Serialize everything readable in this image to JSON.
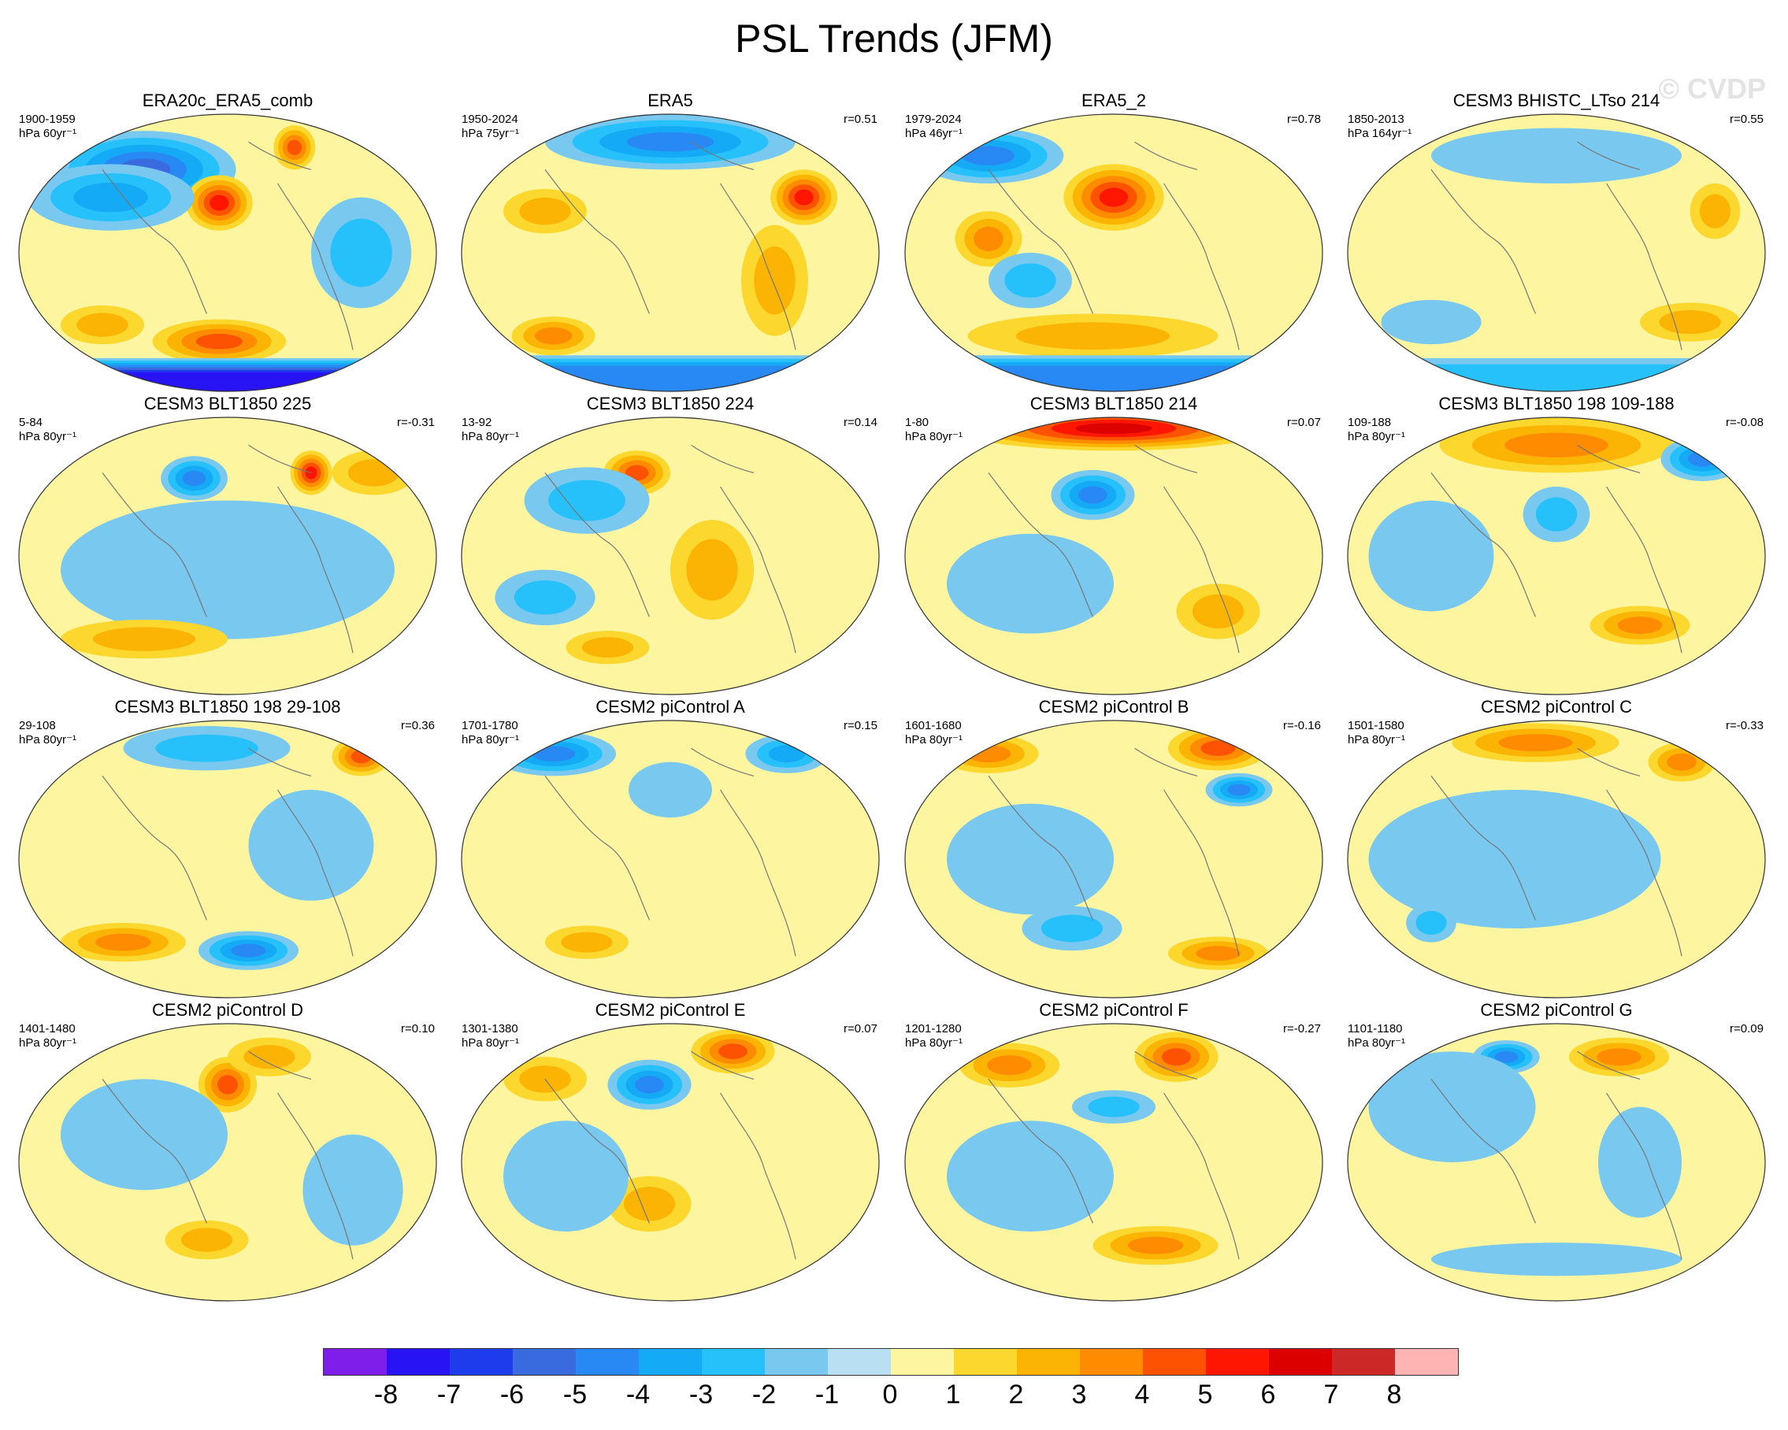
{
  "title": "PSL Trends (JFM)",
  "watermark": "© CVDP",
  "colors": {
    "scale": [
      "#7f1eeb",
      "#2813f5",
      "#1e3ceb",
      "#3a6bde",
      "#2889f5",
      "#15aaf5",
      "#26c1fa",
      "#78c8f0",
      "#b8e0f2",
      "#fdf5a0",
      "#fcd82e",
      "#fcb404",
      "#ff8b00",
      "#fe5203",
      "#fe1600",
      "#dc0000",
      "#cd2828",
      "#ffb4b4"
    ],
    "map_background": "#fdf5a0",
    "pole_blue": "#78c8f0"
  },
  "colorbar": {
    "labels": [
      "-8",
      "-7",
      "-6",
      "-5",
      "-4",
      "-3",
      "-2",
      "-1",
      "0",
      "1",
      "2",
      "3",
      "4",
      "5",
      "6",
      "7",
      "8"
    ]
  },
  "panels": [
    {
      "title": "ERA20c_ERA5_comb",
      "years": "1900-1959",
      "units": "hPa 60yr⁻¹",
      "corr": "",
      "blobs": [
        [
          -5,
          0.3,
          0.2,
          0.22,
          0.14
        ],
        [
          5,
          0.48,
          0.32,
          0.08,
          0.1
        ],
        [
          4,
          0.66,
          0.12,
          0.05,
          0.08
        ],
        [
          -3,
          0.22,
          0.3,
          0.2,
          0.12
        ],
        [
          4,
          0.48,
          0.82,
          0.16,
          0.08
        ],
        [
          -2,
          0.82,
          0.5,
          0.12,
          0.2
        ],
        [
          2,
          0.2,
          0.76,
          0.1,
          0.07
        ]
      ],
      "south": [
        [
          -7,
          0.88,
          1.0
        ]
      ]
    },
    {
      "title": "ERA5",
      "years": "1950-2024",
      "units": "hPa 75yr⁻¹",
      "corr": "r=0.51",
      "blobs": [
        [
          -4,
          0.5,
          0.1,
          0.3,
          0.1
        ],
        [
          5,
          0.82,
          0.3,
          0.08,
          0.1
        ],
        [
          2,
          0.2,
          0.35,
          0.1,
          0.08
        ],
        [
          3,
          0.22,
          0.8,
          0.1,
          0.07
        ],
        [
          2,
          0.75,
          0.6,
          0.08,
          0.2
        ]
      ],
      "south": [
        [
          -4,
          0.87,
          0.97
        ]
      ]
    },
    {
      "title": "ERA5_2",
      "years": "1979-2024",
      "units": "hPa 46yr⁻¹",
      "corr": "r=0.78",
      "blobs": [
        [
          -4,
          0.2,
          0.15,
          0.18,
          0.1
        ],
        [
          5,
          0.5,
          0.3,
          0.12,
          0.12
        ],
        [
          3,
          0.2,
          0.45,
          0.08,
          0.1
        ],
        [
          2,
          0.45,
          0.8,
          0.3,
          0.08
        ],
        [
          -2,
          0.3,
          0.6,
          0.1,
          0.1
        ]
      ],
      "south": [
        [
          -4,
          0.87,
          0.97
        ]
      ]
    },
    {
      "title": "CESM3 BHISTC_LTso 214",
      "years": "1850-2013",
      "units": "hPa 164yr⁻¹",
      "corr": "r=0.55",
      "blobs": [
        [
          -1,
          0.5,
          0.15,
          0.3,
          0.1
        ],
        [
          2,
          0.88,
          0.35,
          0.06,
          0.1
        ],
        [
          2,
          0.82,
          0.75,
          0.12,
          0.07
        ],
        [
          -1,
          0.2,
          0.75,
          0.12,
          0.08
        ]
      ],
      "south": [
        [
          -2,
          0.88,
          0.97
        ]
      ]
    },
    {
      "title": "CESM3 BLT1850 225",
      "years": "5-84",
      "units": "hPa 80yr⁻¹",
      "corr": "r=-0.31",
      "blobs": [
        [
          -4,
          0.42,
          0.22,
          0.08,
          0.08
        ],
        [
          5,
          0.7,
          0.2,
          0.05,
          0.08
        ],
        [
          2,
          0.85,
          0.2,
          0.1,
          0.08
        ],
        [
          -1,
          0.5,
          0.55,
          0.4,
          0.25
        ],
        [
          2,
          0.3,
          0.8,
          0.2,
          0.07
        ]
      ],
      "south": []
    },
    {
      "title": "CESM3 BLT1850 224",
      "years": "13-92",
      "units": "hPa 80yr⁻¹",
      "corr": "r=0.14",
      "blobs": [
        [
          4,
          0.42,
          0.2,
          0.08,
          0.08
        ],
        [
          -2,
          0.3,
          0.3,
          0.15,
          0.12
        ],
        [
          2,
          0.6,
          0.55,
          0.1,
          0.18
        ],
        [
          -2,
          0.2,
          0.65,
          0.12,
          0.1
        ],
        [
          2,
          0.35,
          0.83,
          0.1,
          0.06
        ]
      ],
      "south": []
    },
    {
      "title": "CESM3 BLT1850 214",
      "years": "1-80",
      "units": "hPa 80yr⁻¹",
      "corr": "r=0.07",
      "blobs": [
        [
          6,
          0.5,
          0.04,
          0.38,
          0.08
        ],
        [
          -4,
          0.45,
          0.28,
          0.1,
          0.09
        ],
        [
          -1,
          0.3,
          0.6,
          0.2,
          0.18
        ],
        [
          2,
          0.75,
          0.7,
          0.1,
          0.1
        ]
      ],
      "south": []
    },
    {
      "title": "CESM3 BLT1850 198 109-188",
      "years": "109-188",
      "units": "hPa 80yr⁻¹",
      "corr": "r=-0.08",
      "blobs": [
        [
          3,
          0.5,
          0.1,
          0.28,
          0.1
        ],
        [
          -4,
          0.85,
          0.15,
          0.1,
          0.08
        ],
        [
          -2,
          0.5,
          0.35,
          0.08,
          0.1
        ],
        [
          3,
          0.7,
          0.75,
          0.12,
          0.07
        ],
        [
          -1,
          0.2,
          0.5,
          0.15,
          0.2
        ]
      ],
      "south": []
    },
    {
      "title": "CESM3 BLT1850 198 29-108",
      "years": "29-108",
      "units": "hPa 80yr⁻¹",
      "corr": "r=0.36",
      "blobs": [
        [
          -2,
          0.45,
          0.1,
          0.2,
          0.08
        ],
        [
          4,
          0.82,
          0.13,
          0.07,
          0.07
        ],
        [
          3,
          0.25,
          0.8,
          0.15,
          0.07
        ],
        [
          -4,
          0.55,
          0.83,
          0.12,
          0.07
        ],
        [
          -1,
          0.7,
          0.45,
          0.15,
          0.2
        ]
      ],
      "south": []
    },
    {
      "title": "CESM2 piControl A",
      "years": "1701-1780",
      "units": "hPa 80yr⁻¹",
      "corr": "r=0.15",
      "blobs": [
        [
          -4,
          0.22,
          0.12,
          0.15,
          0.08
        ],
        [
          -3,
          0.78,
          0.12,
          0.1,
          0.07
        ],
        [
          -1,
          0.5,
          0.25,
          0.1,
          0.1
        ],
        [
          2,
          0.3,
          0.8,
          0.1,
          0.06
        ]
      ],
      "south": []
    },
    {
      "title": "CESM2 piControl B",
      "years": "1601-1680",
      "units": "hPa 80yr⁻¹",
      "corr": "r=-0.16",
      "blobs": [
        [
          4,
          0.75,
          0.1,
          0.12,
          0.08
        ],
        [
          -4,
          0.8,
          0.25,
          0.08,
          0.06
        ],
        [
          3,
          0.2,
          0.12,
          0.12,
          0.07
        ],
        [
          -2,
          0.4,
          0.75,
          0.12,
          0.08
        ],
        [
          3,
          0.75,
          0.84,
          0.12,
          0.06
        ],
        [
          -1,
          0.3,
          0.5,
          0.2,
          0.2
        ]
      ],
      "south": []
    },
    {
      "title": "CESM2 piControl C",
      "years": "1501-1580",
      "units": "hPa 80yr⁻¹",
      "corr": "r=-0.33",
      "blobs": [
        [
          3,
          0.45,
          0.08,
          0.2,
          0.07
        ],
        [
          3,
          0.8,
          0.15,
          0.08,
          0.07
        ],
        [
          -1,
          0.4,
          0.5,
          0.35,
          0.25
        ],
        [
          -2,
          0.2,
          0.73,
          0.06,
          0.07
        ]
      ],
      "south": []
    },
    {
      "title": "CESM2 piControl D",
      "years": "1401-1480",
      "units": "hPa 80yr⁻¹",
      "corr": "r=0.10",
      "blobs": [
        [
          4,
          0.5,
          0.22,
          0.07,
          0.1
        ],
        [
          2,
          0.6,
          0.12,
          0.1,
          0.07
        ],
        [
          -1,
          0.3,
          0.4,
          0.2,
          0.2
        ],
        [
          2,
          0.45,
          0.78,
          0.1,
          0.07
        ],
        [
          -1,
          0.8,
          0.6,
          0.12,
          0.2
        ]
      ],
      "south": []
    },
    {
      "title": "CESM2 piControl E",
      "years": "1301-1380",
      "units": "hPa 80yr⁻¹",
      "corr": "r=0.07",
      "blobs": [
        [
          4,
          0.65,
          0.1,
          0.1,
          0.08
        ],
        [
          -4,
          0.45,
          0.22,
          0.1,
          0.09
        ],
        [
          2,
          0.2,
          0.2,
          0.1,
          0.08
        ],
        [
          2,
          0.45,
          0.65,
          0.1,
          0.1
        ],
        [
          -1,
          0.25,
          0.55,
          0.15,
          0.2
        ]
      ],
      "south": []
    },
    {
      "title": "CESM2 piControl F",
      "years": "1201-1280",
      "units": "hPa 80yr⁻¹",
      "corr": "r=-0.27",
      "blobs": [
        [
          4,
          0.65,
          0.12,
          0.1,
          0.09
        ],
        [
          3,
          0.25,
          0.15,
          0.12,
          0.08
        ],
        [
          -2,
          0.5,
          0.3,
          0.1,
          0.06
        ],
        [
          3,
          0.6,
          0.8,
          0.15,
          0.07
        ],
        [
          -1,
          0.3,
          0.55,
          0.2,
          0.2
        ]
      ],
      "south": []
    },
    {
      "title": "CESM2 piControl G",
      "years": "1101-1180",
      "units": "hPa 80yr⁻¹",
      "corr": "r=0.09",
      "blobs": [
        [
          -4,
          0.38,
          0.12,
          0.08,
          0.06
        ],
        [
          3,
          0.65,
          0.12,
          0.12,
          0.07
        ],
        [
          -1,
          0.25,
          0.3,
          0.2,
          0.2
        ],
        [
          -1,
          0.7,
          0.5,
          0.1,
          0.2
        ],
        [
          -1,
          0.5,
          0.85,
          0.3,
          0.06
        ]
      ],
      "south": []
    }
  ]
}
